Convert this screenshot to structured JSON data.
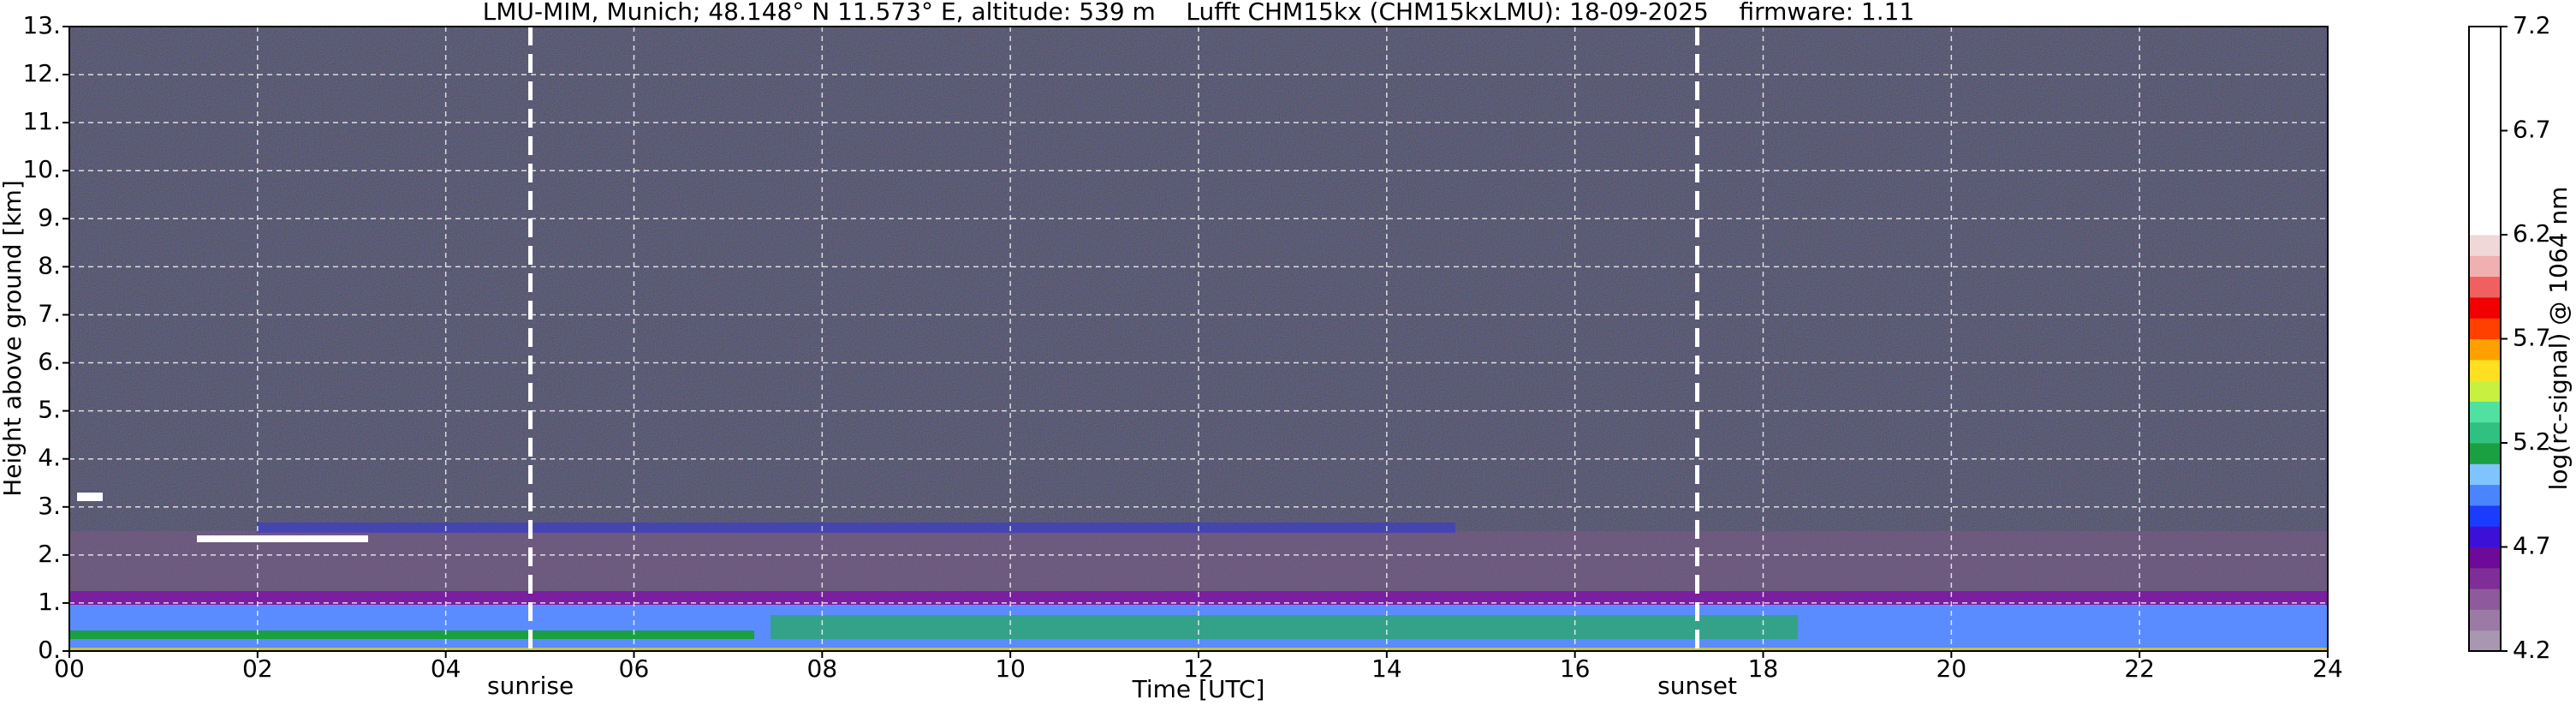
{
  "chart_data": {
    "type": "heatmap",
    "title": "LMU-MIM, Munich; 48.148° N 11.573° E, altitude: 539 m    Lufft CHM15kx (CHM15kxLMU): 18-09-2025    firmware: 1.11",
    "x_label": "Time [UTC]",
    "y_label": "Height above ground [km]",
    "xlim": [
      0,
      24
    ],
    "xticks": [
      {
        "value": 0,
        "label": "00"
      },
      {
        "value": 2,
        "label": "02"
      },
      {
        "value": 4,
        "label": "04"
      },
      {
        "value": 6,
        "label": "06"
      },
      {
        "value": 8,
        "label": "08"
      },
      {
        "value": 10,
        "label": "10"
      },
      {
        "value": 12,
        "label": "12"
      },
      {
        "value": 14,
        "label": "14"
      },
      {
        "value": 16,
        "label": "16"
      },
      {
        "value": 18,
        "label": "18"
      },
      {
        "value": 20,
        "label": "20"
      },
      {
        "value": 22,
        "label": "22"
      },
      {
        "value": 24,
        "label": "24"
      }
    ],
    "ylim": [
      0,
      13
    ],
    "yticks": [
      {
        "value": 0,
        "label": "0."
      },
      {
        "value": 1,
        "label": "1."
      },
      {
        "value": 2,
        "label": "2."
      },
      {
        "value": 3,
        "label": "3."
      },
      {
        "value": 4,
        "label": "4."
      },
      {
        "value": 5,
        "label": "5."
      },
      {
        "value": 6,
        "label": "6."
      },
      {
        "value": 7,
        "label": "7."
      },
      {
        "value": 8,
        "label": "8."
      },
      {
        "value": 9,
        "label": "9."
      },
      {
        "value": 10,
        "label": "10."
      },
      {
        "value": 11,
        "label": "11."
      },
      {
        "value": 12,
        "label": "12."
      },
      {
        "value": 13,
        "label": "13."
      }
    ],
    "grid": true,
    "annotations": [
      {
        "text": "sunrise",
        "x": 4.9
      },
      {
        "text": "sunset",
        "x": 17.3
      }
    ],
    "colorbar": {
      "label": "log(rc-signal) @ 1064 nm",
      "lim": [
        4.2,
        7.2
      ],
      "ticks": [
        4.2,
        4.7,
        5.2,
        5.7,
        6.2,
        6.7,
        7.2
      ],
      "colors": [
        "#a996b0",
        "#9c7aa6",
        "#8e5a9c",
        "#7e2e96",
        "#6e0a98",
        "#3d10d8",
        "#1a3cff",
        "#4a84ff",
        "#80c4ff",
        "#1aa040",
        "#30c080",
        "#50e0a0",
        "#c8f040",
        "#ffe020",
        "#ffa000",
        "#ff4000",
        "#f00000",
        "#f06060",
        "#f0b0b0",
        "#f0d8d8",
        "#ffffff",
        "#ffffff",
        "#ffffff",
        "#ffffff",
        "#ffffff",
        "#ffffff",
        "#ffffff",
        "#ffffff",
        "#ffffff",
        "#ffffff"
      ]
    }
  }
}
